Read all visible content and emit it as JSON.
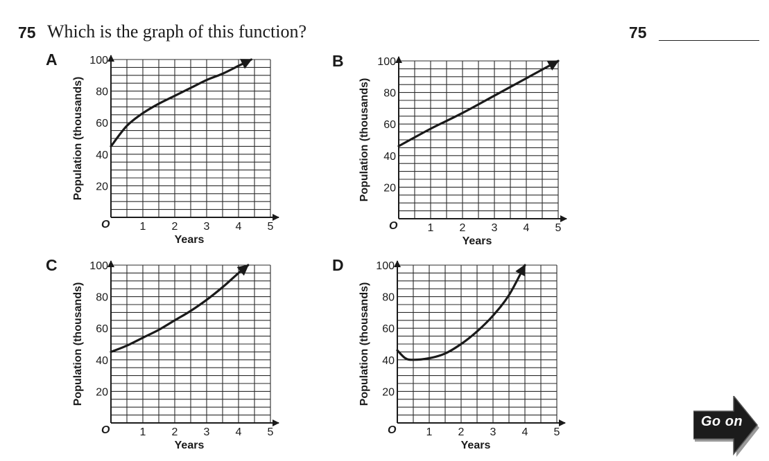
{
  "question": {
    "number": "75",
    "text": "Which is the graph of this function?",
    "answer_number": "75",
    "answer": ""
  },
  "go_on": {
    "label": "Go on",
    "icon": "arrow-right-icon"
  },
  "colors": {
    "ink": "#1a1a1a",
    "grid": "#2a2a2a",
    "go_on_fill": "#1c1c1c"
  },
  "chart_data": [
    {
      "label": "A",
      "type": "line",
      "xlabel": "Years",
      "ylabel": "Population (thousands)",
      "origin_label": "O",
      "x_ticks": [
        "1",
        "2",
        "3",
        "4",
        "5"
      ],
      "y_ticks": [
        "20",
        "40",
        "60",
        "80",
        "100"
      ],
      "xlim": [
        0,
        5
      ],
      "ylim": [
        0,
        100
      ],
      "grid": true,
      "arrow_end": true,
      "x": [
        0,
        0.5,
        1,
        1.5,
        2,
        2.5,
        3,
        3.5,
        4,
        4.4
      ],
      "y": [
        45,
        58,
        66,
        72,
        77,
        82,
        87,
        91,
        96,
        100
      ]
    },
    {
      "label": "B",
      "type": "line",
      "xlabel": "Years",
      "ylabel": "Population (thousands)",
      "origin_label": "O",
      "x_ticks": [
        "1",
        "2",
        "3",
        "4",
        "5"
      ],
      "y_ticks": [
        "20",
        "40",
        "60",
        "80",
        "100"
      ],
      "xlim": [
        0,
        5
      ],
      "ylim": [
        0,
        100
      ],
      "grid": true,
      "arrow_end": true,
      "x": [
        0,
        1,
        2,
        3,
        4,
        5
      ],
      "y": [
        46,
        57,
        67,
        78,
        89,
        100
      ]
    },
    {
      "label": "C",
      "type": "line",
      "xlabel": "Years",
      "ylabel": "Population (thousands)",
      "origin_label": "O",
      "x_ticks": [
        "1",
        "2",
        "3",
        "4",
        "5"
      ],
      "y_ticks": [
        "20",
        "40",
        "60",
        "80",
        "100"
      ],
      "xlim": [
        0,
        5
      ],
      "ylim": [
        0,
        100
      ],
      "grid": true,
      "arrow_end": true,
      "x": [
        0,
        0.5,
        1,
        1.5,
        2,
        2.5,
        3,
        3.5,
        4,
        4.3
      ],
      "y": [
        45,
        49,
        54,
        59,
        65,
        71,
        78,
        86,
        95,
        100
      ]
    },
    {
      "label": "D",
      "type": "line",
      "xlabel": "Years",
      "ylabel": "Population (thousands)",
      "origin_label": "O",
      "x_ticks": [
        "1",
        "2",
        "3",
        "4",
        "5"
      ],
      "y_ticks": [
        "20",
        "40",
        "60",
        "80",
        "100"
      ],
      "xlim": [
        0,
        5
      ],
      "ylim": [
        0,
        100
      ],
      "grid": true,
      "arrow_end": true,
      "x": [
        0,
        0.25,
        0.5,
        1,
        1.5,
        2,
        2.5,
        3,
        3.5,
        4
      ],
      "y": [
        46,
        41,
        40,
        41,
        44,
        50,
        58,
        68,
        81,
        100
      ]
    }
  ]
}
